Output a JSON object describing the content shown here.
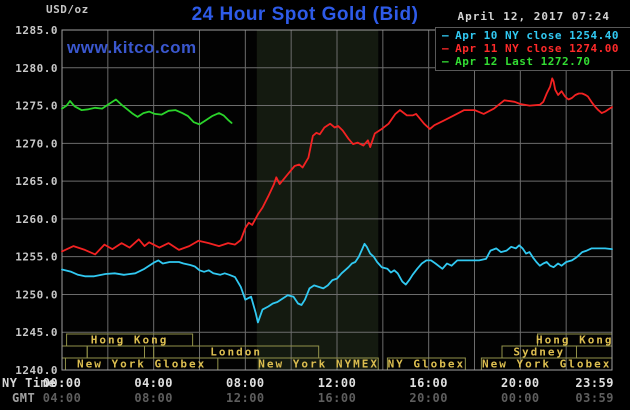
{
  "header": {
    "unit_label": "USD/oz",
    "title": "24 Hour Spot Gold (Bid)",
    "datetime": "April 12, 2017 07:24",
    "watermark": "www.kitco.com"
  },
  "legend": {
    "dash": "–",
    "items": [
      {
        "label": "Apr 10 NY close 1254.40",
        "color": "#31c9f2"
      },
      {
        "label": "Apr 11 NY close 1274.00",
        "color": "#ff2a2a"
      },
      {
        "label": "Apr 12 Last 1272.70",
        "color": "#33dd33"
      }
    ]
  },
  "axes": {
    "y_ticks": [
      "1285.0",
      "1280.0",
      "1275.0",
      "1270.0",
      "1265.0",
      "1260.0",
      "1255.0",
      "1250.0",
      "1245.0",
      "1240.0"
    ],
    "ny_row": {
      "label": "NY Time",
      "ticks": [
        "00:00",
        "04:00",
        "08:00",
        "12:00",
        "16:00",
        "20:00",
        "23:59"
      ],
      "tick_hours": [
        0,
        4,
        8,
        12,
        16,
        20,
        24
      ]
    },
    "gmt_row": {
      "label": "GMT",
      "ticks": [
        "04:00",
        "08:00",
        "12:00",
        "16:00",
        "20:00",
        "00:00",
        "03:59"
      ],
      "tick_hours": [
        0,
        4,
        8,
        12,
        16,
        20,
        24
      ]
    },
    "colors": {
      "y_tick": "#c8c8c8",
      "ny_tick": "#e0e0e0",
      "gmt_tick": "#5e5e5e",
      "ny_label": "#d8d8d8",
      "gmt_label": "#a0a0a0",
      "grid": "#6c6c6c",
      "border": "#a0a0a0"
    }
  },
  "sessions": {
    "border_color": "#92924a",
    "text_color": "#dcbe50",
    "rows": [
      {
        "boxes": [
          {
            "label": "Hong Kong",
            "start": 0.2,
            "end": 5.7
          },
          {
            "label": "Hong Kong",
            "start": 20.75,
            "end": 24
          }
        ]
      },
      {
        "boxes": [
          {
            "label": "",
            "start": 0,
            "end": 1.1
          },
          {
            "label": "",
            "start": 1.1,
            "end": 3.6
          },
          {
            "label": "London",
            "start": 4.0,
            "end": 11.2
          },
          {
            "label": "Sydney",
            "start": 19.2,
            "end": 22.45
          }
        ]
      },
      {
        "boxes": [
          {
            "label": "New York Globex",
            "start": 0.15,
            "end": 6.8
          },
          {
            "label": "New York NYMEX",
            "start": 8.6,
            "end": 13.8
          },
          {
            "label": "NY Globex",
            "start": 14.2,
            "end": 17.6
          },
          {
            "label": "New York Globex",
            "start": 18.3,
            "end": 24
          }
        ]
      }
    ]
  },
  "chart_data": {
    "type": "line",
    "title": "24 Hour Spot Gold (Bid)",
    "xlabel": "NY Time (hours 00:00–23:59)",
    "ylabel": "USD/oz",
    "ylim": [
      1240,
      1285
    ],
    "xlim_hours": [
      0,
      24
    ],
    "grid": true,
    "x_grid_step_hours": 2,
    "y_grid_step": 5,
    "highlight_band_hours": [
      8.5,
      13.8
    ],
    "highlight_band_color": "#141a10",
    "series": [
      {
        "name": "Apr 10 NY close 1254.40",
        "color": "#31c9f2",
        "points": [
          [
            0,
            1253.3
          ],
          [
            0.4,
            1253.0
          ],
          [
            0.7,
            1252.6
          ],
          [
            1.0,
            1252.4
          ],
          [
            1.4,
            1252.4
          ],
          [
            1.9,
            1252.7
          ],
          [
            2.3,
            1252.8
          ],
          [
            2.7,
            1252.6
          ],
          [
            3.2,
            1252.8
          ],
          [
            3.6,
            1253.4
          ],
          [
            4.0,
            1254.2
          ],
          [
            4.2,
            1254.5
          ],
          [
            4.4,
            1254.1
          ],
          [
            4.7,
            1254.3
          ],
          [
            5.1,
            1254.3
          ],
          [
            5.3,
            1254.1
          ],
          [
            5.6,
            1253.9
          ],
          [
            5.8,
            1253.7
          ],
          [
            6.0,
            1253.2
          ],
          [
            6.2,
            1253.0
          ],
          [
            6.4,
            1253.2
          ],
          [
            6.6,
            1252.8
          ],
          [
            6.9,
            1252.6
          ],
          [
            7.1,
            1252.8
          ],
          [
            7.3,
            1252.6
          ],
          [
            7.55,
            1252.3
          ],
          [
            7.8,
            1251.0
          ],
          [
            8.0,
            1249.3
          ],
          [
            8.25,
            1249.7
          ],
          [
            8.45,
            1247.6
          ],
          [
            8.55,
            1246.3
          ],
          [
            8.75,
            1248.0
          ],
          [
            9.0,
            1248.4
          ],
          [
            9.2,
            1248.8
          ],
          [
            9.4,
            1249.0
          ],
          [
            9.65,
            1249.5
          ],
          [
            9.85,
            1249.9
          ],
          [
            10.1,
            1249.7
          ],
          [
            10.3,
            1248.8
          ],
          [
            10.45,
            1248.6
          ],
          [
            10.6,
            1249.3
          ],
          [
            10.8,
            1250.8
          ],
          [
            11.0,
            1251.2
          ],
          [
            11.2,
            1251.0
          ],
          [
            11.4,
            1250.8
          ],
          [
            11.6,
            1251.2
          ],
          [
            11.8,
            1251.9
          ],
          [
            12.0,
            1252.1
          ],
          [
            12.2,
            1252.8
          ],
          [
            12.35,
            1253.2
          ],
          [
            12.5,
            1253.6
          ],
          [
            12.65,
            1254.1
          ],
          [
            12.8,
            1254.3
          ],
          [
            12.95,
            1255.0
          ],
          [
            13.1,
            1256.0
          ],
          [
            13.2,
            1256.7
          ],
          [
            13.3,
            1256.3
          ],
          [
            13.45,
            1255.4
          ],
          [
            13.6,
            1255.0
          ],
          [
            13.75,
            1254.3
          ],
          [
            13.95,
            1253.6
          ],
          [
            14.2,
            1253.4
          ],
          [
            14.35,
            1252.9
          ],
          [
            14.5,
            1253.2
          ],
          [
            14.65,
            1252.8
          ],
          [
            14.85,
            1251.7
          ],
          [
            15.0,
            1251.3
          ],
          [
            15.15,
            1251.9
          ],
          [
            15.3,
            1252.6
          ],
          [
            15.5,
            1253.4
          ],
          [
            15.7,
            1254.1
          ],
          [
            15.9,
            1254.5
          ],
          [
            16.1,
            1254.5
          ],
          [
            16.3,
            1254.1
          ],
          [
            16.6,
            1253.4
          ],
          [
            16.8,
            1254.1
          ],
          [
            17.0,
            1253.8
          ],
          [
            17.25,
            1254.5
          ],
          [
            17.6,
            1254.5
          ],
          [
            17.9,
            1254.5
          ],
          [
            18.2,
            1254.5
          ],
          [
            18.5,
            1254.7
          ],
          [
            18.7,
            1255.8
          ],
          [
            18.95,
            1256.1
          ],
          [
            19.15,
            1255.6
          ],
          [
            19.4,
            1255.8
          ],
          [
            19.6,
            1256.3
          ],
          [
            19.8,
            1256.1
          ],
          [
            19.95,
            1256.5
          ],
          [
            20.1,
            1256.1
          ],
          [
            20.25,
            1255.4
          ],
          [
            20.4,
            1255.6
          ],
          [
            20.55,
            1254.9
          ],
          [
            20.7,
            1254.3
          ],
          [
            20.85,
            1253.8
          ],
          [
            21.0,
            1254.1
          ],
          [
            21.15,
            1254.3
          ],
          [
            21.3,
            1253.8
          ],
          [
            21.45,
            1253.6
          ],
          [
            21.65,
            1254.1
          ],
          [
            21.8,
            1253.8
          ],
          [
            22.0,
            1254.3
          ],
          [
            22.25,
            1254.5
          ],
          [
            22.45,
            1254.9
          ],
          [
            22.7,
            1255.6
          ],
          [
            22.9,
            1255.8
          ],
          [
            23.1,
            1256.1
          ],
          [
            23.4,
            1256.1
          ],
          [
            23.7,
            1256.1
          ],
          [
            24,
            1256.0
          ]
        ]
      },
      {
        "name": "Apr 11 NY close 1274.00",
        "color": "#f32222",
        "points": [
          [
            0,
            1255.7
          ],
          [
            0.5,
            1256.4
          ],
          [
            1.0,
            1255.9
          ],
          [
            1.45,
            1255.3
          ],
          [
            1.85,
            1256.6
          ],
          [
            2.2,
            1256.0
          ],
          [
            2.6,
            1256.8
          ],
          [
            2.95,
            1256.2
          ],
          [
            3.35,
            1257.3
          ],
          [
            3.6,
            1256.4
          ],
          [
            3.8,
            1256.9
          ],
          [
            4.25,
            1256.2
          ],
          [
            4.65,
            1256.8
          ],
          [
            5.1,
            1255.9
          ],
          [
            5.55,
            1256.4
          ],
          [
            5.95,
            1257.1
          ],
          [
            6.4,
            1256.8
          ],
          [
            6.85,
            1256.4
          ],
          [
            7.25,
            1256.8
          ],
          [
            7.55,
            1256.6
          ],
          [
            7.8,
            1257.2
          ],
          [
            8.0,
            1258.8
          ],
          [
            8.15,
            1259.5
          ],
          [
            8.3,
            1259.2
          ],
          [
            8.55,
            1260.6
          ],
          [
            8.75,
            1261.5
          ],
          [
            9.0,
            1263.0
          ],
          [
            9.25,
            1264.6
          ],
          [
            9.35,
            1265.5
          ],
          [
            9.5,
            1264.6
          ],
          [
            9.85,
            1265.9
          ],
          [
            10.15,
            1267.0
          ],
          [
            10.35,
            1267.2
          ],
          [
            10.5,
            1266.8
          ],
          [
            10.75,
            1268.1
          ],
          [
            10.95,
            1271.0
          ],
          [
            11.1,
            1271.4
          ],
          [
            11.25,
            1271.2
          ],
          [
            11.45,
            1272.1
          ],
          [
            11.7,
            1272.6
          ],
          [
            11.9,
            1272.1
          ],
          [
            12.05,
            1272.3
          ],
          [
            12.25,
            1271.7
          ],
          [
            12.5,
            1270.6
          ],
          [
            12.7,
            1269.9
          ],
          [
            12.9,
            1270.1
          ],
          [
            13.15,
            1269.7
          ],
          [
            13.35,
            1270.4
          ],
          [
            13.45,
            1269.5
          ],
          [
            13.65,
            1271.3
          ],
          [
            13.95,
            1271.9
          ],
          [
            14.25,
            1272.6
          ],
          [
            14.55,
            1273.9
          ],
          [
            14.75,
            1274.4
          ],
          [
            15.05,
            1273.7
          ],
          [
            15.3,
            1273.7
          ],
          [
            15.45,
            1273.9
          ],
          [
            15.8,
            1272.6
          ],
          [
            16.05,
            1271.9
          ],
          [
            16.25,
            1272.4
          ],
          [
            16.65,
            1273.0
          ],
          [
            17.1,
            1273.7
          ],
          [
            17.55,
            1274.4
          ],
          [
            18.0,
            1274.4
          ],
          [
            18.4,
            1273.9
          ],
          [
            18.85,
            1274.6
          ],
          [
            19.3,
            1275.7
          ],
          [
            19.75,
            1275.5
          ],
          [
            20.0,
            1275.2
          ],
          [
            20.4,
            1275.0
          ],
          [
            20.85,
            1275.1
          ],
          [
            21.0,
            1275.5
          ],
          [
            21.15,
            1276.6
          ],
          [
            21.3,
            1277.5
          ],
          [
            21.39,
            1278.6
          ],
          [
            21.45,
            1278.2
          ],
          [
            21.52,
            1277.1
          ],
          [
            21.65,
            1276.4
          ],
          [
            21.8,
            1276.9
          ],
          [
            21.95,
            1276.2
          ],
          [
            22.1,
            1275.8
          ],
          [
            22.25,
            1276.0
          ],
          [
            22.4,
            1276.4
          ],
          [
            22.55,
            1276.6
          ],
          [
            22.7,
            1276.6
          ],
          [
            22.85,
            1276.4
          ],
          [
            22.95,
            1276.2
          ],
          [
            23.1,
            1275.5
          ],
          [
            23.25,
            1274.9
          ],
          [
            23.4,
            1274.4
          ],
          [
            23.55,
            1274.0
          ],
          [
            23.7,
            1274.2
          ],
          [
            23.85,
            1274.5
          ],
          [
            24,
            1274.8
          ]
        ]
      },
      {
        "name": "Apr 12 Last 1272.70",
        "color": "#2bd42b",
        "points": [
          [
            0,
            1274.6
          ],
          [
            0.2,
            1275.0
          ],
          [
            0.35,
            1275.6
          ],
          [
            0.55,
            1274.9
          ],
          [
            0.85,
            1274.4
          ],
          [
            1.15,
            1274.5
          ],
          [
            1.45,
            1274.7
          ],
          [
            1.75,
            1274.6
          ],
          [
            2.05,
            1275.2
          ],
          [
            2.35,
            1275.8
          ],
          [
            2.6,
            1275.1
          ],
          [
            2.85,
            1274.5
          ],
          [
            3.1,
            1273.9
          ],
          [
            3.3,
            1273.5
          ],
          [
            3.55,
            1274.0
          ],
          [
            3.8,
            1274.2
          ],
          [
            4.05,
            1273.9
          ],
          [
            4.35,
            1273.8
          ],
          [
            4.65,
            1274.3
          ],
          [
            4.95,
            1274.4
          ],
          [
            5.25,
            1274.0
          ],
          [
            5.5,
            1273.6
          ],
          [
            5.75,
            1272.8
          ],
          [
            6.0,
            1272.5
          ],
          [
            6.3,
            1273.1
          ],
          [
            6.55,
            1273.6
          ],
          [
            6.85,
            1274.0
          ],
          [
            7.05,
            1273.7
          ],
          [
            7.25,
            1273.1
          ],
          [
            7.4,
            1272.7
          ]
        ]
      }
    ]
  }
}
